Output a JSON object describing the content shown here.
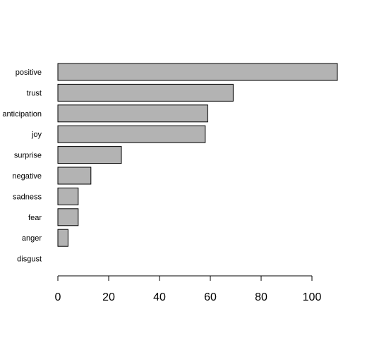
{
  "chart_data": {
    "type": "bar",
    "orientation": "horizontal",
    "categories": [
      "positive",
      "trust",
      "anticipation",
      "joy",
      "surprise",
      "negative",
      "sadness",
      "fear",
      "anger",
      "disgust"
    ],
    "values": [
      110,
      69,
      59,
      58,
      25,
      13,
      8,
      8,
      4,
      0
    ],
    "x_ticks": [
      0,
      20,
      40,
      60,
      80,
      100
    ],
    "xlim": [
      0,
      110
    ],
    "grid": false,
    "legend": "none",
    "colors": {
      "bar_fill": "#b3b3b3",
      "bar_stroke": "#000000",
      "axis": "#000000",
      "text": "#000000"
    }
  }
}
